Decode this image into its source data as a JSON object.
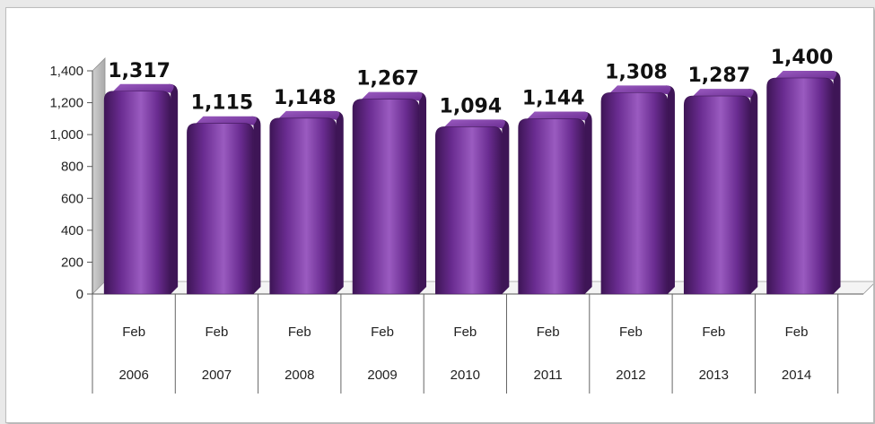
{
  "colors": {
    "bar": "#6a2c91",
    "bar_dark": "#3e1556",
    "bar_light": "#9a5bc0",
    "wall": "#a9a9a9"
  },
  "chart_data": {
    "type": "bar",
    "title": "",
    "xlabel": "",
    "ylabel": "",
    "categories": [
      [
        "Feb",
        "2006"
      ],
      [
        "Feb",
        "2007"
      ],
      [
        "Feb",
        "2008"
      ],
      [
        "Feb",
        "2009"
      ],
      [
        "Feb",
        "2010"
      ],
      [
        "Feb",
        "2011"
      ],
      [
        "Feb",
        "2012"
      ],
      [
        "Feb",
        "2013"
      ],
      [
        "Feb",
        "2014"
      ]
    ],
    "values": [
      1317,
      1115,
      1148,
      1267,
      1094,
      1144,
      1308,
      1287,
      1400
    ],
    "data_labels": [
      "1,317",
      "1,115",
      "1,148",
      "1,267",
      "1,094",
      "1,144",
      "1,308",
      "1,287",
      "1,400"
    ],
    "ylim": [
      0,
      1400
    ],
    "yticks": [
      0,
      200,
      400,
      600,
      800,
      1000,
      1200,
      1400
    ],
    "ytick_labels": [
      "0",
      "200",
      "400",
      "600",
      "800",
      "1,000",
      "1,200",
      "1,400"
    ],
    "grid": false,
    "legend": "none",
    "style": "3d-cylinder"
  }
}
